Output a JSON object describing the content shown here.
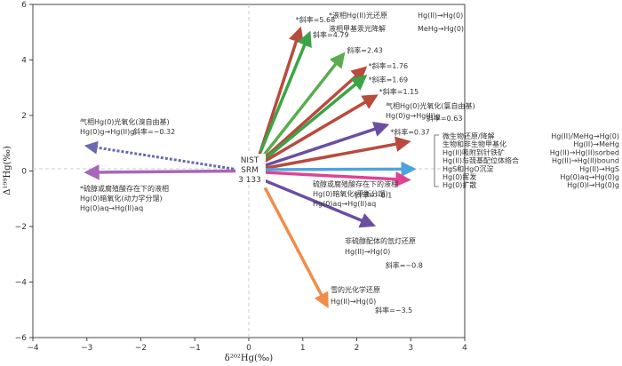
{
  "chart_data": {
    "type": "vector",
    "xlabel": "δ²⁰²Hg(‰)",
    "ylabel": "Δ¹⁹⁹Hg(‰)",
    "xlim": [
      -4,
      4
    ],
    "ylim": [
      -6,
      6
    ],
    "x_ticks": [
      "−4",
      "−3",
      "−2",
      "−1",
      "0",
      "1",
      "2",
      "3",
      "4"
    ],
    "y_ticks": [
      "6",
      "4",
      "2",
      "0",
      "−2",
      "−4",
      "−6"
    ],
    "grid": false,
    "origin_label": [
      "NIST",
      "SRM",
      "3 133"
    ],
    "arrows": [
      {
        "x0": 0.2,
        "y0": 0.6,
        "x1": 0.95,
        "y1": 5.1,
        "color": "#b94a3e",
        "slope": "*斜率=5.68"
      },
      {
        "x0": 0.22,
        "y0": 0.7,
        "x1": 1.12,
        "y1": 4.95,
        "color": "#3aa446",
        "slope": "斜率=4.79"
      },
      {
        "x0": 0.25,
        "y0": 0.5,
        "x1": 1.75,
        "y1": 4.2,
        "color": "#5aac4e",
        "slope": "斜率=2.43"
      },
      {
        "x0": 0.25,
        "y0": 0.4,
        "x1": 2.15,
        "y1": 3.7,
        "color": "#b94a3e",
        "slope": "*斜率=1.76"
      },
      {
        "x0": 0.25,
        "y0": 0.35,
        "x1": 2.15,
        "y1": 3.4,
        "color": "#3aa446",
        "slope": "*斜率=1.69"
      },
      {
        "x0": 0.25,
        "y0": 0.3,
        "x1": 2.35,
        "y1": 2.7,
        "color": "#b94a3e",
        "slope": "*斜率=1.15"
      },
      {
        "x0": 0.3,
        "y0": 0.2,
        "x1": 2.55,
        "y1": 1.65,
        "color": "#6a4fa0",
        "slope": "斜率=0.63"
      },
      {
        "x0": 0.3,
        "y0": 0.1,
        "x1": 2.95,
        "y1": 1.05,
        "color": "#b94a3e",
        "slope": "*斜率=0.37"
      },
      {
        "x0": 0.3,
        "y0": 0.05,
        "x1": 3.05,
        "y1": 0.07,
        "color": "#4fa3dc",
        "slope": ""
      },
      {
        "x0": 0.3,
        "y0": -0.05,
        "x1": 2.95,
        "y1": -0.32,
        "color": "#e04393",
        "slope": "斜率=−0.1"
      },
      {
        "x0": 0.3,
        "y0": -0.35,
        "x1": 2.3,
        "y1": -1.95,
        "color": "#6a4fa0",
        "slope": "斜率=−0.8"
      },
      {
        "x0": 0.3,
        "y0": -0.6,
        "x1": 1.45,
        "y1": -4.85,
        "color": "#f28c4a",
        "slope": "斜率=−3.5"
      },
      {
        "x0": -0.2,
        "y0": 0.0,
        "x1": -3.0,
        "y1": -0.05,
        "color": "#a866b8",
        "slope": ""
      },
      {
        "x0": -0.2,
        "y0": 0.05,
        "x1": -3.0,
        "y1": 0.9,
        "color": "#6a6ab0",
        "dashed": true,
        "slope": ""
      }
    ],
    "annotations": {
      "top_legend_1": "*液相Hg(II)光还原",
      "top_legend_1_reaction": "Hg(II)→Hg(0)",
      "top_legend_2": "液相甲基汞光降解",
      "top_legend_2_reaction": "MeHg→Hg(0)",
      "br_oxidation_1": "气相Hg(0)光氧化(溴自由基)",
      "br_oxidation_2": "Hg(0)g→Hg(II)g",
      "br_oxidation_slope": "斜率=−0.32",
      "cl_oxidation_1": "气相Hg(0)光氧化(氯自由基)",
      "cl_oxidation_2": "Hg(0)g→Hg(II)g",
      "left_bottom_1": "*硫醇或腐殖酸存在下的液相",
      "left_bottom_2": "Hg(0)暗氧化(动力学分馏)",
      "left_bottom_3": "Hg(0)aq→Hg(II)aq",
      "mid_right_1": "硫醇或腐殖酸存在下的液相",
      "mid_right_2": "Hg(0)暗氧化(平衡分馏)",
      "mid_right_3": "Hg(0)aq→Hg(II)aq",
      "non_thiol_1": "非硫醇配体的氙灯还原",
      "non_thiol_2": "Hg(II)→Hg(0)",
      "snow_1": "雪的光化学还原",
      "snow_2": "Hg(II)→Hg(0)",
      "bracket_items": [
        "微生物还原/降解",
        "生物和非生物甲基化",
        "Hg(II)吸附到针铁矿",
        "Hg(II)与巯基配位体络合",
        "HgS和HgO沉淀",
        "Hg(0)挥发",
        "Hg(0)扩散"
      ],
      "bracket_reactions": [
        "Hg(II)/MeHg→Hg(0)",
        "Hg(II)→MeHg",
        "Hg(II)→Hg(II)sorbed",
        "Hg(II)→Hg(II)bound",
        "Hg(II)→HgS",
        "Hg(0)aq→Hg(0)g",
        "Hg(0)l→Hg(0)g"
      ]
    }
  },
  "colors": {
    "red": "#b94a3e",
    "green": "#3aa446",
    "purple": "#6a4fa0",
    "blue": "#4fa3dc",
    "pink": "#e04393",
    "orange": "#f28c4a",
    "violet": "#a866b8"
  }
}
